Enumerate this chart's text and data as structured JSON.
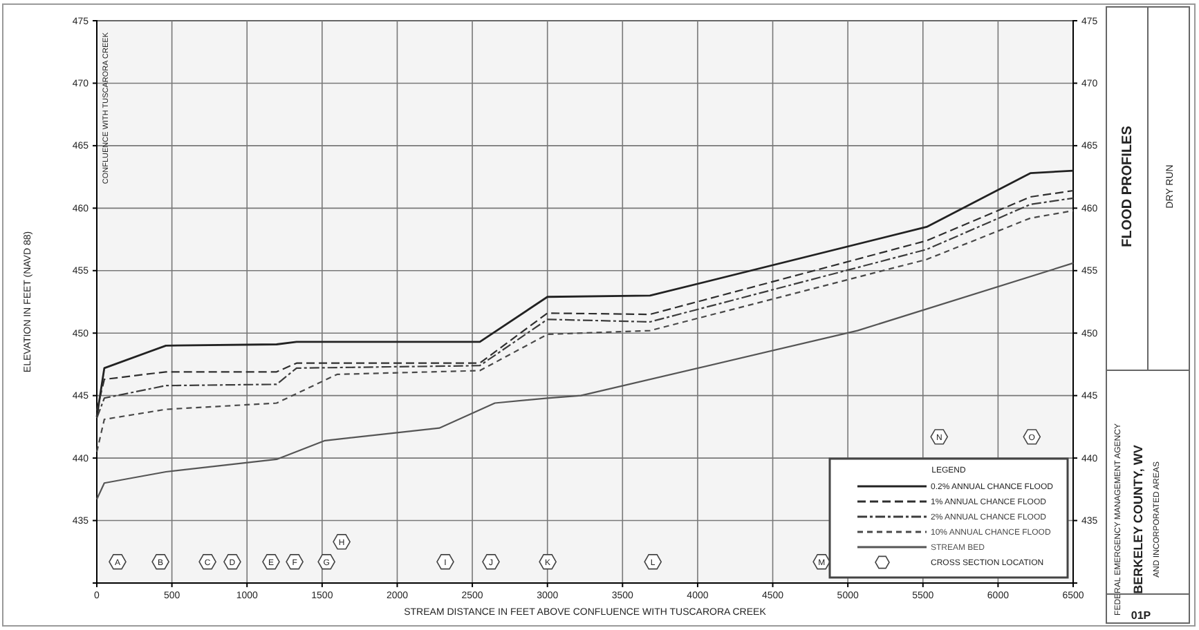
{
  "chart_data": {
    "type": "line",
    "title": "FLOOD PROFILES",
    "subtitle": "DRY RUN",
    "xlabel": "STREAM DISTANCE IN FEET ABOVE CONFLUENCE WITH TUSCARORA CREEK",
    "ylabel": "ELEVATION IN FEET (NAVD 88)",
    "legend_title": "LEGEND",
    "xlim": [
      0,
      6500
    ],
    "xticks": [
      0,
      500,
      1000,
      1500,
      2000,
      2500,
      3000,
      3500,
      4000,
      4500,
      5000,
      5500,
      6000,
      6500
    ],
    "ylim": [
      430,
      475
    ],
    "yticks": [
      {
        "value": 430,
        "label": null
      },
      435,
      440,
      445,
      450,
      455,
      460,
      465,
      470,
      475
    ],
    "y2lim": [
      430,
      475
    ],
    "y2ticks": [
      {
        "value": 430,
        "label": null
      },
      435,
      440,
      445,
      450,
      455,
      460,
      465,
      470,
      475
    ],
    "grid": true,
    "legend": "bottom right",
    "marker": "none",
    "series": [
      {
        "name": "0.2% ANNUAL CHANCE FLOOD",
        "color": "#222222",
        "line_style": "solid",
        "x": [
          0,
          50,
          460,
          1197,
          1330,
          2550,
          3000,
          3683,
          5525,
          6215,
          6500
        ],
        "values": [
          443.3,
          447.2,
          449.0,
          449.1,
          449.3,
          449.3,
          452.9,
          453.0,
          458.5,
          462.8,
          463.0
        ]
      },
      {
        "name": "1% ANNUAL CHANCE FLOOD",
        "color": "#2e2e2e",
        "line_style": "dashed",
        "x": [
          0,
          50,
          460,
          1197,
          1330,
          2550,
          3000,
          3683,
          5525,
          6215,
          6500
        ],
        "values": [
          443.8,
          446.3,
          446.9,
          446.9,
          447.6,
          447.6,
          451.6,
          451.5,
          457.4,
          460.9,
          461.4
        ]
      },
      {
        "name": "2% ANNUAL CHANCE FLOOD",
        "color": "#3c3c3c",
        "line_style": "dashed",
        "x": [
          0,
          50,
          460,
          1197,
          1330,
          2550,
          3000,
          3683,
          5525,
          6215,
          6500
        ],
        "values": [
          443.2,
          444.8,
          445.8,
          445.9,
          447.2,
          447.4,
          451.1,
          450.9,
          456.7,
          460.3,
          460.8
        ]
      },
      {
        "name": "10% ANNUAL CHANCE FLOOD",
        "color": "#484848",
        "line_style": "dashed",
        "x": [
          0,
          50,
          460,
          1197,
          1600,
          2550,
          3000,
          3683,
          5525,
          6215,
          6500
        ],
        "values": [
          440.5,
          443.1,
          443.9,
          444.4,
          446.7,
          447.0,
          449.9,
          450.2,
          455.9,
          459.2,
          459.8
        ]
      },
      {
        "name": "STREAM BED",
        "color": "#555555",
        "line_style": "solid",
        "x": [
          0,
          50,
          460,
          1197,
          1519,
          2280,
          2650,
          3000,
          3223,
          5064,
          6500
        ],
        "values": [
          436.7,
          438.0,
          438.9,
          439.9,
          441.4,
          442.4,
          444.4,
          444.8,
          445.0,
          450.2,
          455.6
        ]
      }
    ],
    "annotations": [
      "CONFLUENCE WITH TUSCARORA CREEK",
      "FEDERAL EMERGENCY MANAGEMENT AGENCY",
      "BERKELEY COUNTY, WV",
      "AND INCORPORATED AREAS",
      "01P",
      "CROSS SECTION LOCATION",
      {
        "text": "A",
        "x": 138,
        "y": 431.7
      },
      {
        "text": "B",
        "x": 424,
        "y": 431.7
      },
      {
        "text": "C",
        "x": 737,
        "y": 431.7
      },
      {
        "text": "D",
        "x": 902,
        "y": 431.7
      },
      {
        "text": "E",
        "x": 1160,
        "y": 431.7
      },
      {
        "text": "F",
        "x": 1317,
        "y": 431.7
      },
      {
        "text": "G",
        "x": 1529,
        "y": 431.7
      },
      {
        "text": "H",
        "x": 1630,
        "y": 433.3
      },
      {
        "text": "I",
        "x": 2320,
        "y": 431.7
      },
      {
        "text": "J",
        "x": 2624,
        "y": 431.7
      },
      {
        "text": "K",
        "x": 3002,
        "y": 431.7
      },
      {
        "text": "L",
        "x": 3702,
        "y": 431.7
      },
      {
        "text": "M",
        "x": 4825,
        "y": 431.7
      },
      {
        "text": "N",
        "x": 5608,
        "y": 441.7
      },
      {
        "text": "O",
        "x": 6225,
        "y": 441.7
      }
    ]
  }
}
